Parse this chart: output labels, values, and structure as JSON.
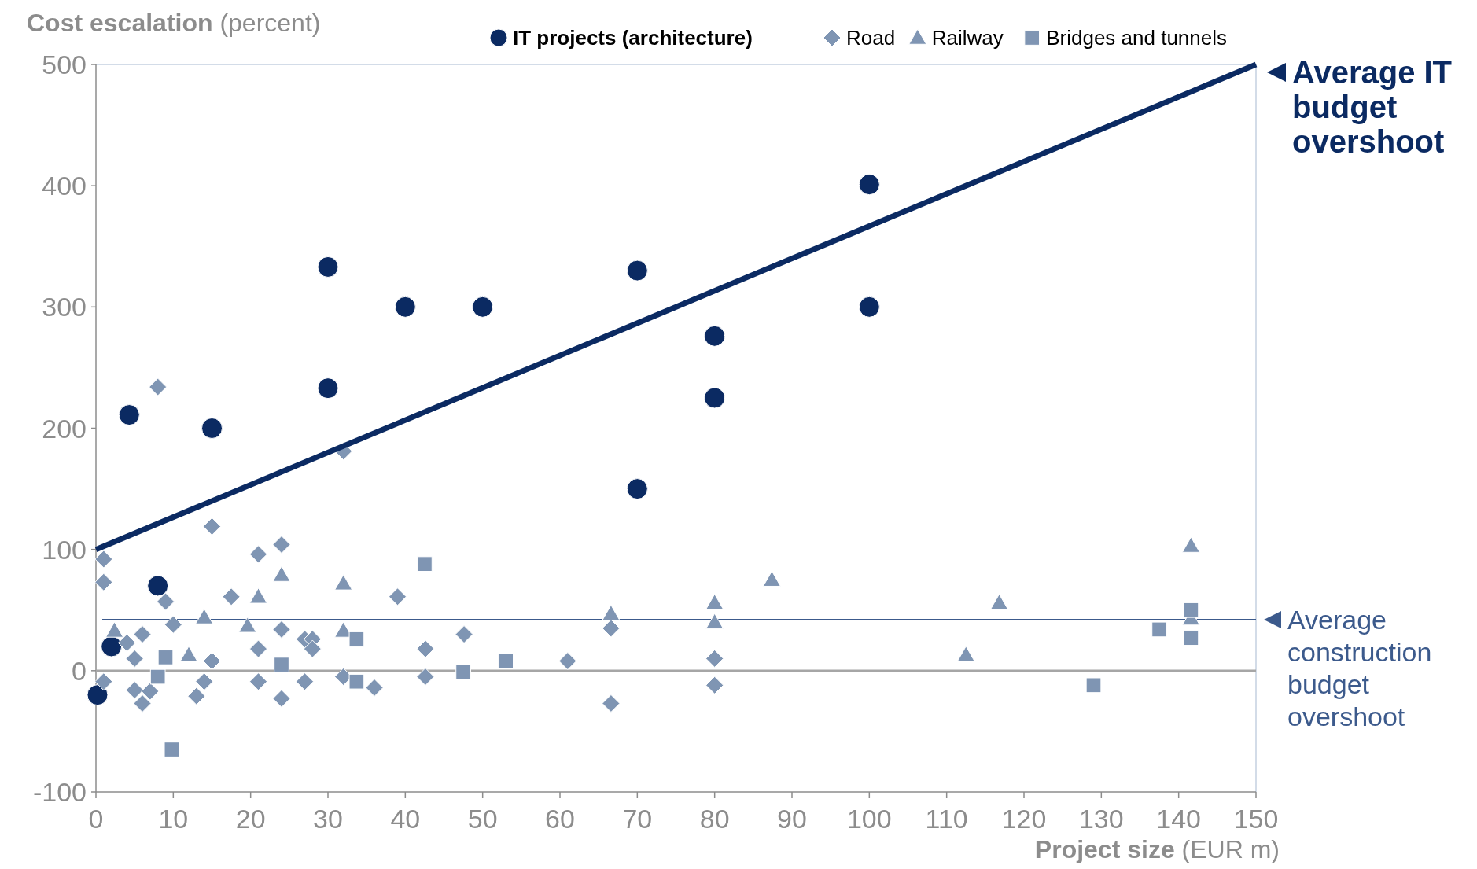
{
  "chart_data": {
    "type": "scatter",
    "ylabel": "Cost escalation (percent)",
    "xlabel": "Project size (EUR m)",
    "xlim": [
      0,
      150
    ],
    "xticks": [
      0,
      10,
      20,
      30,
      40,
      50,
      60,
      70,
      80,
      90,
      100,
      110,
      120,
      130,
      140,
      150
    ],
    "ylim": [
      -100,
      500
    ],
    "yticks": [
      -100,
      0,
      100,
      200,
      300,
      400,
      500
    ],
    "grid": false,
    "legend": "top",
    "series": [
      {
        "name": "IT projects (architecture)",
        "color": "#0b2a62",
        "marker": "circle",
        "x": [
          0.2,
          2,
          4.3,
          8,
          15,
          30,
          30,
          40,
          50,
          70,
          70,
          80,
          80,
          100,
          100
        ],
        "values": [
          -20,
          20,
          211,
          70,
          200,
          333,
          233,
          300,
          300,
          330,
          150,
          276,
          225,
          401,
          300
        ]
      },
      {
        "name": "Road",
        "color": "#7f95b3",
        "marker": "diamond",
        "x": [
          1,
          1,
          8,
          1,
          4,
          5,
          5,
          6,
          6,
          7,
          9,
          10,
          15,
          15,
          14,
          13,
          17.5,
          21,
          21,
          21,
          24,
          24,
          24,
          27,
          28,
          28,
          27,
          32,
          32,
          36,
          39,
          42.6,
          42.6,
          47.6,
          61,
          66.6,
          66.6,
          80,
          80
        ],
        "values": [
          92,
          73,
          234,
          -9,
          23,
          10,
          -16,
          30,
          -27,
          -17,
          57,
          38,
          119,
          8,
          -9,
          -21,
          61,
          96,
          18,
          -9,
          104,
          34,
          -23,
          26,
          26,
          18,
          -9,
          181,
          -5,
          -14,
          61,
          18,
          -5,
          30,
          8,
          35,
          -27,
          10,
          -12
        ]
      },
      {
        "name": "Railway",
        "color": "#7f95b3",
        "marker": "triangle",
        "x": [
          2.4,
          12,
          14,
          19.6,
          21,
          24,
          32,
          32,
          66.6,
          80,
          80,
          87.4,
          112.5,
          116.8,
          141.6,
          141.6
        ],
        "values": [
          33,
          13,
          44,
          37,
          61,
          79,
          72,
          33,
          47,
          56,
          40,
          75,
          13,
          56,
          103,
          43
        ]
      },
      {
        "name": "Bridges and tunnels",
        "color": "#7f95b3",
        "marker": "square",
        "x": [
          9,
          8,
          9.8,
          24,
          33.7,
          33.7,
          42.5,
          47.5,
          53,
          129,
          137.5,
          141.6,
          141.6
        ],
        "values": [
          11,
          -5,
          -65,
          5,
          26,
          -9,
          88,
          -1,
          8,
          -12,
          34,
          50,
          27
        ]
      },
      {
        "name": "Average IT budget overshoot",
        "type": "line",
        "color": "#0b2a62",
        "marker": "none",
        "line_style": "solid",
        "x": [
          0,
          150
        ],
        "values": [
          100,
          500
        ]
      }
    ],
    "ref_lines": [
      {
        "axis": "y",
        "value": 0,
        "color": "#a6a6a6"
      },
      {
        "axis": "y",
        "value": 42,
        "label": "Average construction budget overshoot",
        "color": "#3c5a8c"
      }
    ]
  }
}
